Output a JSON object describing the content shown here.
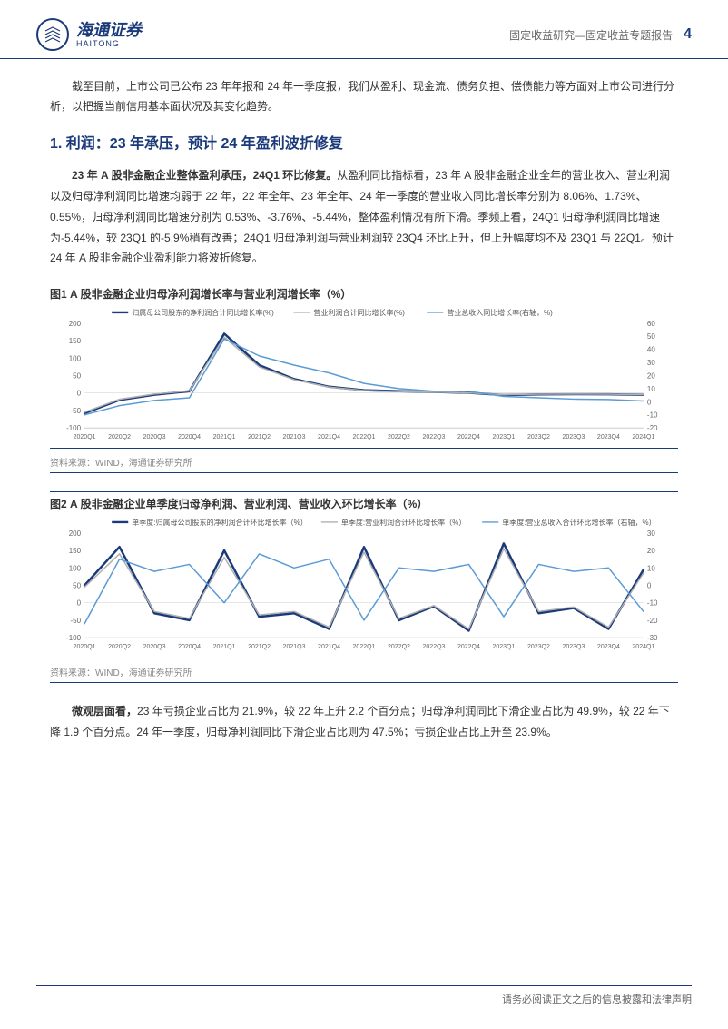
{
  "header": {
    "logo_chinese": "海通证券",
    "logo_english": "HAITONG",
    "category": "固定收益研究—固定收益专题报告",
    "page_number": "4"
  },
  "intro": "截至目前，上市公司已公布 23 年年报和 24 年一季度报，我们从盈利、现金流、债务负担、偿债能力等方面对上市公司进行分析，以把握当前信用基本面状况及其变化趋势。",
  "section1_title": "1. 利润：23 年承压，预计 24 年盈利波折修复",
  "para1_bold": "23 年 A 股非金融企业整体盈利承压，24Q1 环比修复。",
  "para1": "从盈利同比指标看，23 年 A 股非金融企业全年的营业收入、营业利润以及归母净利润同比增速均弱于 22 年，22 年全年、23 年全年、24 年一季度的营业收入同比增长率分别为 8.06%、1.73%、0.55%，归母净利润同比增速分别为 0.53%、-3.76%、-5.44%，整体盈利情况有所下滑。季频上看，24Q1 归母净利润同比增速为-5.44%，较 23Q1 的-5.9%稍有改善；24Q1 归母净利润与营业利润较 23Q4 环比上升，但上升幅度均不及 23Q1 与 22Q1。预计 24 年 A 股非金融企业盈利能力将波折修复。",
  "chart1": {
    "title": "图1  A 股非金融企业归母净利润增长率与营业利润增长率（%）",
    "type": "line",
    "categories": [
      "2020Q1",
      "2020Q2",
      "2020Q3",
      "2020Q4",
      "2021Q1",
      "2021Q2",
      "2021Q3",
      "2021Q4",
      "2022Q1",
      "2022Q2",
      "2022Q3",
      "2022Q4",
      "2023Q1",
      "2023Q2",
      "2023Q3",
      "2023Q4",
      "2024Q1"
    ],
    "series": [
      {
        "name": "归属母公司股东的净利润合计同比增长率(%)",
        "color": "#1a3a7a",
        "width": 2.5,
        "axis": "left",
        "data": [
          -58,
          -20,
          -5,
          5,
          170,
          80,
          40,
          18,
          8,
          5,
          3,
          0.5,
          -5.9,
          -4,
          -3.5,
          -3.76,
          -5.44
        ]
      },
      {
        "name": "营业利润合计同比增长率(%)",
        "color": "#b0b0b0",
        "width": 1.5,
        "axis": "left",
        "data": [
          -55,
          -18,
          -3,
          6,
          160,
          75,
          38,
          17,
          7,
          4,
          2.5,
          0.3,
          -5,
          -3.5,
          -3,
          -3.5,
          -5
        ]
      },
      {
        "name": "营业总收入同比增长率(右轴，%)",
        "color": "#5b9bd5",
        "width": 1.5,
        "axis": "right",
        "data": [
          -10,
          -3,
          1,
          3,
          48,
          35,
          28,
          22,
          14,
          10,
          8,
          8.06,
          4,
          3,
          2,
          1.73,
          0.55
        ]
      }
    ],
    "y_left": {
      "lim": [
        -100,
        200
      ],
      "ticks": [
        -100,
        -50,
        0,
        50,
        100,
        150,
        200
      ]
    },
    "y_right": {
      "lim": [
        -20,
        60
      ],
      "ticks": [
        -20,
        -10,
        0,
        10,
        20,
        30,
        40,
        50,
        60
      ]
    },
    "background": "#ffffff",
    "grid_color": "#cccccc",
    "legend_fontsize": 8,
    "axis_fontsize": 8,
    "source": "资料来源：WIND，海通证券研究所"
  },
  "chart2": {
    "title": "图2  A 股非金融企业单季度归母净利润、营业利润、营业收入环比增长率（%）",
    "type": "line",
    "categories": [
      "2020Q1",
      "2020Q2",
      "2020Q3",
      "2020Q4",
      "2021Q1",
      "2021Q2",
      "2021Q3",
      "2021Q4",
      "2022Q1",
      "2022Q2",
      "2022Q3",
      "2022Q4",
      "2023Q1",
      "2023Q2",
      "2023Q3",
      "2023Q4",
      "2024Q1"
    ],
    "series": [
      {
        "name": "单季度:归属母公司股东的净利润合计环比增长率（%）",
        "color": "#1a3a7a",
        "width": 2.5,
        "axis": "left",
        "data": [
          50,
          160,
          -30,
          -50,
          150,
          -40,
          -30,
          -75,
          160,
          -50,
          -10,
          -80,
          170,
          -30,
          -15,
          -75,
          95
        ]
      },
      {
        "name": "单季度:营业利润合计环比增长率（%）",
        "color": "#b0b0b0",
        "width": 1.5,
        "axis": "left",
        "data": [
          45,
          140,
          -25,
          -45,
          130,
          -35,
          -25,
          -70,
          145,
          -45,
          -8,
          -75,
          155,
          -25,
          -12,
          -70,
          85
        ]
      },
      {
        "name": "单季度:营业总收入合计环比增长率（右轴，%）",
        "color": "#5b9bd5",
        "width": 1.5,
        "axis": "right",
        "data": [
          -22,
          15,
          8,
          12,
          -10,
          18,
          10,
          15,
          -20,
          10,
          8,
          12,
          -18,
          12,
          8,
          10,
          -15
        ]
      }
    ],
    "y_left": {
      "lim": [
        -100,
        200
      ],
      "ticks": [
        -100,
        -50,
        0,
        50,
        100,
        150,
        200
      ]
    },
    "y_right": {
      "lim": [
        -30,
        30
      ],
      "ticks": [
        -30,
        -20,
        -10,
        0,
        10,
        20,
        30
      ]
    },
    "background": "#ffffff",
    "grid_color": "#cccccc",
    "legend_fontsize": 8,
    "axis_fontsize": 8,
    "source": "资料来源：WIND，海通证券研究所"
  },
  "para2_bold": "微观层面看，",
  "para2": "23 年亏损企业占比为 21.9%，较 22 年上升 2.2 个百分点；归母净利润同比下滑企业占比为 49.9%，较 22 年下降 1.9 个百分点。24 年一季度，归母净利润同比下滑企业占比则为 47.5%；亏损企业占比上升至 23.9%。",
  "footer": "请务必阅读正文之后的信息披露和法律声明"
}
